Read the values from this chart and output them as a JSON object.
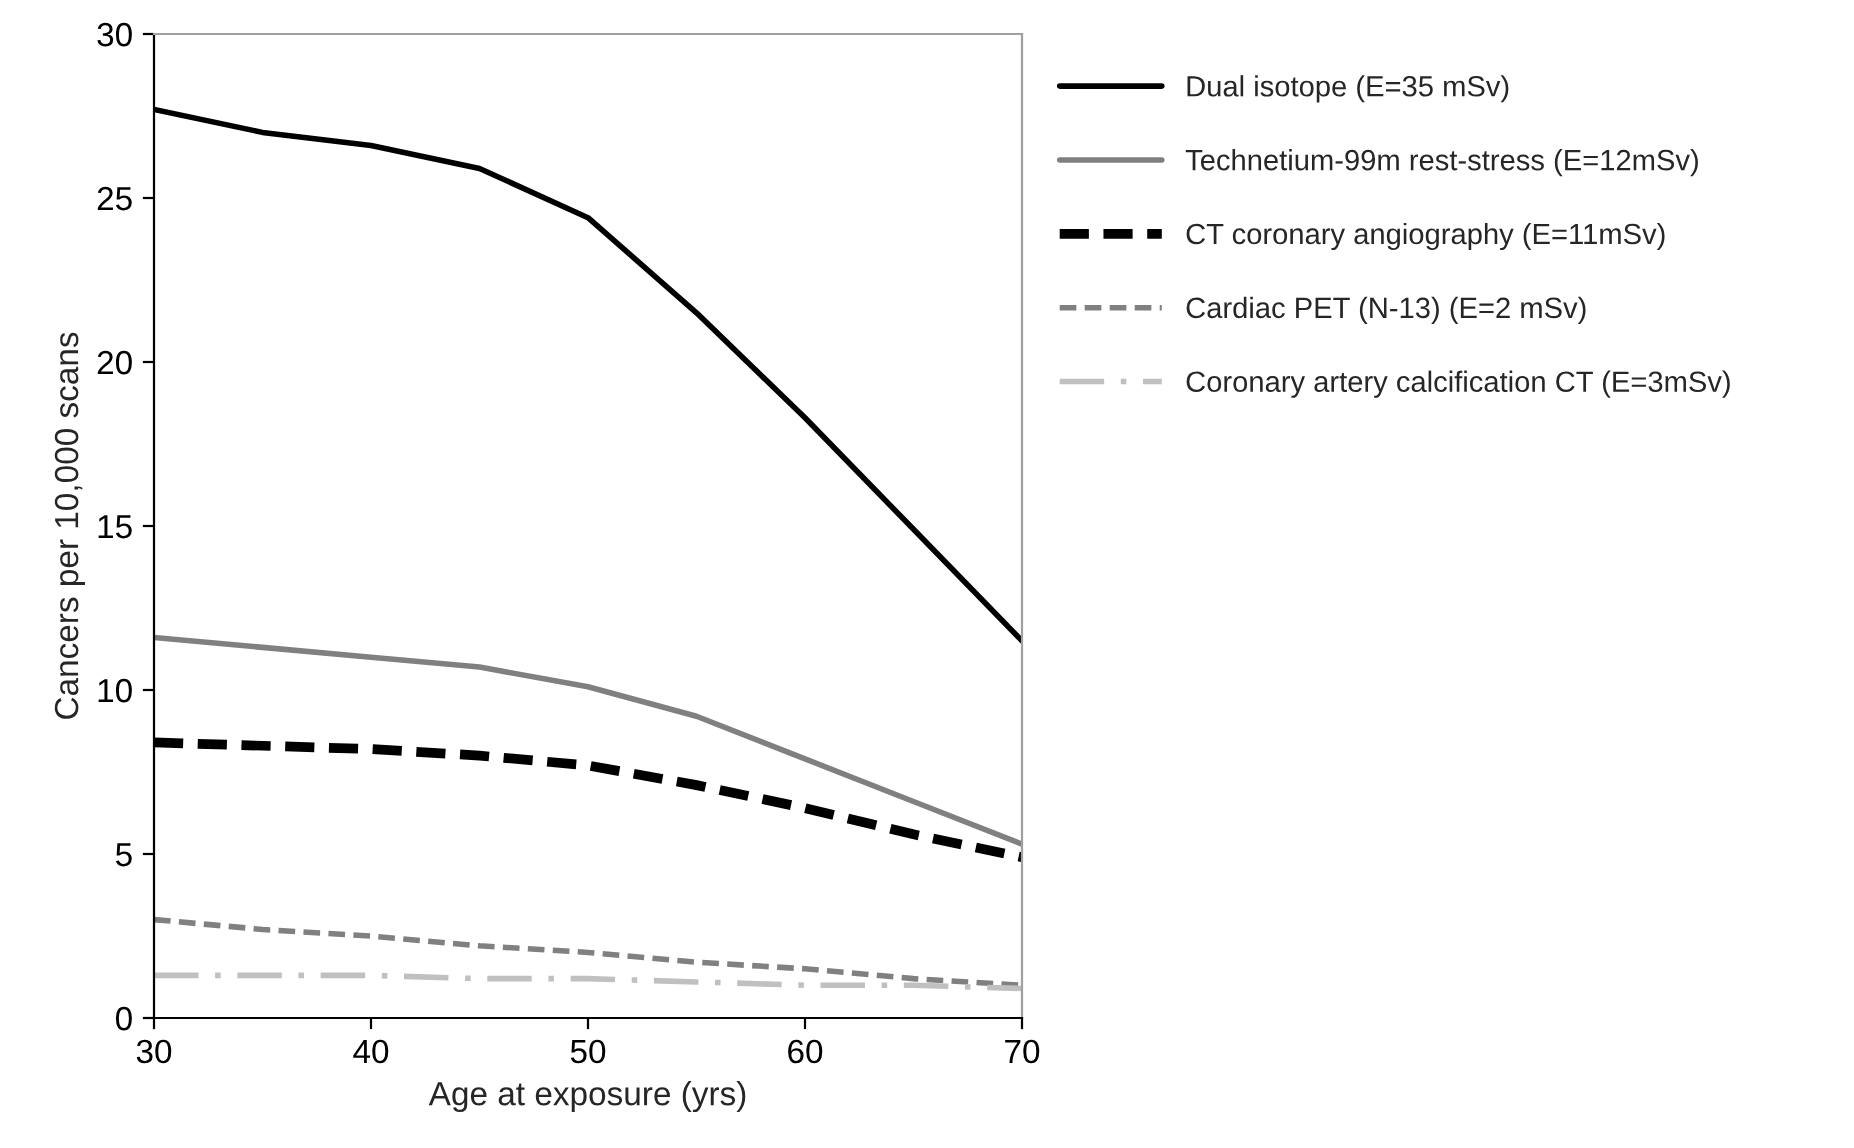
{
  "chart_data": {
    "type": "line",
    "xlabel": "Age at exposure (yrs)",
    "ylabel": "Cancers per 10,000 scans",
    "x": [
      30,
      35,
      40,
      45,
      50,
      55,
      60,
      65,
      70
    ],
    "xlim": [
      30,
      70
    ],
    "xticks": [
      30,
      40,
      50,
      60,
      70
    ],
    "ylim": [
      0,
      30
    ],
    "yticks": [
      0,
      5,
      10,
      15,
      20,
      25,
      30
    ],
    "grid": false,
    "legend": "right",
    "marker": "none",
    "series": [
      {
        "name": "Dual isotope (E=35 mSv)",
        "color": "#000000",
        "line_style": "solid",
        "values": [
          27.7,
          27.0,
          26.6,
          25.9,
          24.4,
          21.5,
          18.3,
          14.9,
          11.5
        ]
      },
      {
        "name": "Technetium-99m rest-stress (E=12mSv)",
        "color": "#808080",
        "line_style": "solid",
        "values": [
          11.6,
          11.3,
          11.0,
          10.7,
          10.1,
          9.2,
          7.9,
          6.6,
          5.3
        ]
      },
      {
        "name": "CT coronary angiography (E=11mSv)",
        "color": "#000000",
        "line_style": "dashed",
        "values": [
          8.4,
          8.3,
          8.2,
          8.0,
          7.7,
          7.1,
          6.4,
          5.6,
          4.9
        ]
      },
      {
        "name": "Cardiac PET (N-13) (E=2 mSv)",
        "color": "#808080",
        "line_style": "dashed",
        "values": [
          3.0,
          2.7,
          2.5,
          2.2,
          2.0,
          1.7,
          1.5,
          1.2,
          1.0
        ]
      },
      {
        "name": "Coronary artery calcification CT (E=3mSv)",
        "color": "#c0c0c0",
        "line_style": "dashdot",
        "values": [
          1.3,
          1.3,
          1.3,
          1.2,
          1.2,
          1.1,
          1.0,
          1.0,
          0.9
        ]
      }
    ]
  }
}
